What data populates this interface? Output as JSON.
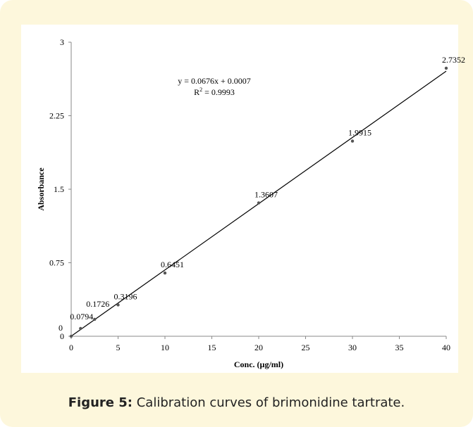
{
  "chart_data": {
    "type": "scatter",
    "x_label": "Conc. (µg/ml)",
    "y_label": "Absorbance",
    "x": [
      0,
      1,
      2.5,
      5,
      10,
      20,
      30,
      40
    ],
    "values": [
      0,
      0.0794,
      0.1726,
      0.3196,
      0.6451,
      1.3607,
      1.9915,
      2.7352
    ],
    "color": "#555555",
    "xlim": [
      0,
      40
    ],
    "xticks": [
      0,
      5,
      10,
      15,
      20,
      25,
      30,
      35,
      40
    ],
    "ylim": [
      0,
      3
    ],
    "yticks": [
      0,
      0.75,
      1.5,
      2.25,
      3
    ],
    "grid": false,
    "trendline": {
      "slope": 0.0676,
      "intercept": 0.0007,
      "color": "#000000",
      "equation": "y = 0.0676x + 0.0007",
      "r2_symbol": "R",
      "r2_power": "2",
      "r2_text": " = 0.9993"
    }
  },
  "caption": {
    "label": "Figure 5:",
    "text": " Calibration curves of brimonidine tartrate."
  }
}
